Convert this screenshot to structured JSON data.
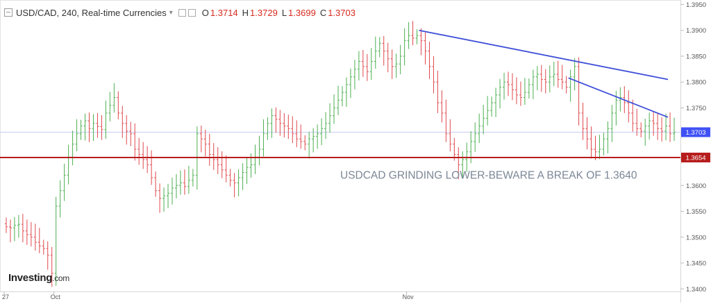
{
  "header": {
    "title": "USD/CAD, 240, Real-time Currencies",
    "ohlc": [
      {
        "label": "O",
        "value": "1.3714"
      },
      {
        "label": "H",
        "value": "1.3729"
      },
      {
        "label": "L",
        "value": "1.3699"
      },
      {
        "label": "C",
        "value": "1.3703"
      }
    ]
  },
  "brand": {
    "name": "Investing",
    "suffix": ".com"
  },
  "annotation_text": "USDCAD GRINDING LOWER-BEWARE A BREAK OF 1.3640",
  "colors": {
    "up": "#4caf50",
    "down": "#e0474c",
    "trendline": "#3f4fd8",
    "support": "#b71c1c",
    "price_line": "#c5cbf5"
  },
  "chart_data": {
    "type": "ohlc-bar",
    "title": "USD/CAD, 240, Real-time Currencies",
    "ylim": [
      1.3395,
      1.3952
    ],
    "y_ticks": [
      "1.3950",
      "1.3900",
      "1.3850",
      "1.3800",
      "1.3750",
      "1.3700",
      "1.3650",
      "1.3600",
      "1.3550",
      "1.3500",
      "1.3450",
      "1.3400"
    ],
    "x_ticks": [
      {
        "label": "27",
        "index": 0
      },
      {
        "label": "Oct",
        "index": 12
      },
      {
        "label": "Nov",
        "index": 97
      }
    ],
    "last_price": {
      "label": "1.3703",
      "value": 1.3703
    },
    "support_level": {
      "label": "1.3654",
      "value": 1.3654
    },
    "trendlines": [
      {
        "from": {
          "index": 100,
          "price": 1.39
        },
        "to": {
          "index": 160,
          "price": 1.3805
        }
      },
      {
        "from": {
          "index": 136,
          "price": 1.3808
        },
        "to": {
          "index": 160,
          "price": 1.3732
        }
      }
    ],
    "annotation": {
      "text": "USDCAD GRINDING LOWER-BEWARE A BREAK OF 1.3640",
      "index": 81,
      "price": 1.3613
    },
    "bars_count": 162,
    "closes": [
      1.352,
      1.3518,
      1.3523,
      1.3525,
      1.3512,
      1.3505,
      1.35,
      1.349,
      1.3483,
      1.3478,
      1.3465,
      1.343,
      1.356,
      1.359,
      1.362,
      1.3655,
      1.368,
      1.37,
      1.3715,
      1.3725,
      1.371,
      1.372,
      1.3714,
      1.3708,
      1.374,
      1.3755,
      1.377,
      1.374,
      1.372,
      1.3705,
      1.37,
      1.367,
      1.366,
      1.365,
      1.364,
      1.3615,
      1.359,
      1.3575,
      1.358,
      1.3585,
      1.3595,
      1.36,
      1.3605,
      1.3598,
      1.361,
      1.362,
      1.37,
      1.369,
      1.368,
      1.366,
      1.365,
      1.364,
      1.363,
      1.362,
      1.361,
      1.3605,
      1.3615,
      1.3625,
      1.3635,
      1.364,
      1.3655,
      1.367,
      1.37,
      1.372,
      1.3735,
      1.3728,
      1.372,
      1.3715,
      1.371,
      1.37,
      1.369,
      1.3685,
      1.368,
      1.369,
      1.3695,
      1.37,
      1.371,
      1.372,
      1.3735,
      1.375,
      1.3765,
      1.378,
      1.3795,
      1.381,
      1.3825,
      1.384,
      1.383,
      1.382,
      1.384,
      1.386,
      1.3875,
      1.386,
      1.3845,
      1.383,
      1.3835,
      1.385,
      1.388,
      1.389,
      1.3885,
      1.389,
      1.388,
      1.386,
      1.383,
      1.38,
      1.376,
      1.374,
      1.37,
      1.368,
      1.366,
      1.364,
      1.365,
      1.3665,
      1.3685,
      1.37,
      1.3715,
      1.373,
      1.3745,
      1.376,
      1.3775,
      1.379,
      1.38,
      1.3795,
      1.3785,
      1.3775,
      1.377,
      1.378,
      1.3795,
      1.381,
      1.3815,
      1.3805,
      1.38,
      1.381,
      1.3815,
      1.3805,
      1.38,
      1.379,
      1.381,
      1.383,
      1.374,
      1.371,
      1.369,
      1.367,
      1.3665,
      1.367,
      1.369,
      1.371,
      1.374,
      1.3765,
      1.377,
      1.376,
      1.374,
      1.372,
      1.371,
      1.3705,
      1.3715,
      1.3725,
      1.372,
      1.371,
      1.3705,
      1.3715,
      1.37,
      1.3703
    ]
  }
}
